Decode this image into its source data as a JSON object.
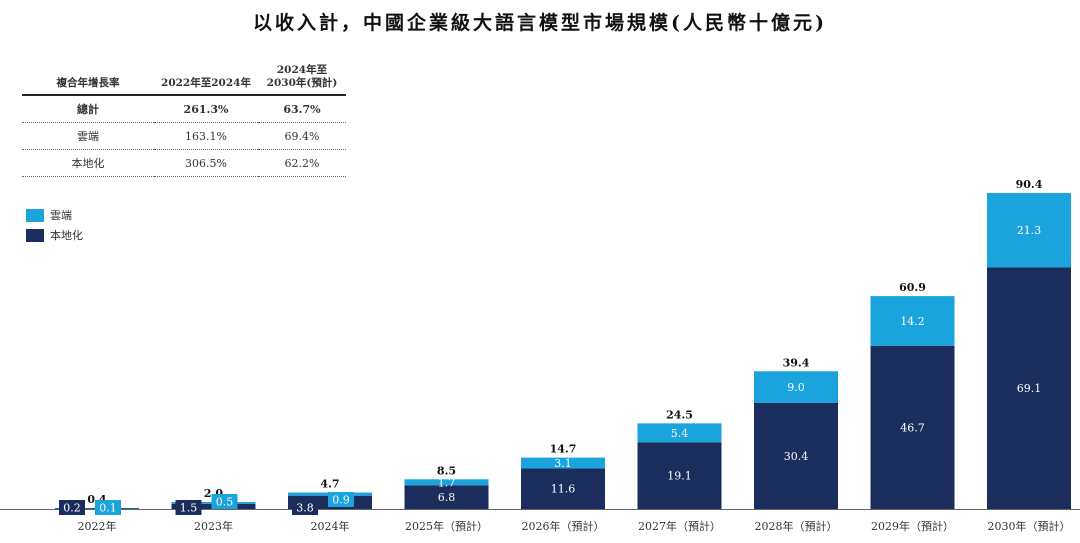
{
  "title": "以收入計，中國企業級大語言模型市場規模(人民幣十億元)",
  "cagr_table": {
    "headers": [
      "複合年增長率",
      "2022年至2024年",
      "2024年至\n2030年(預計)"
    ],
    "rows": [
      {
        "label": "總計",
        "v1": "261.3%",
        "v2": "63.7%",
        "bold": true
      },
      {
        "label": "雲端",
        "v1": "163.1%",
        "v2": "69.4%",
        "bold": false
      },
      {
        "label": "本地化",
        "v1": "306.5%",
        "v2": "62.2%",
        "bold": false
      }
    ]
  },
  "legend": [
    {
      "name": "雲端",
      "color": "#1aa3dc"
    },
    {
      "name": "本地化",
      "color": "#1b2d5c"
    }
  ],
  "chart_data": {
    "type": "bar",
    "stacked": true,
    "categories": [
      "2022年",
      "2023年",
      "2024年",
      "2025年（預計）",
      "2026年（預計）",
      "2027年（預計）",
      "2028年（預計）",
      "2029年（預計）",
      "2030年（預計）"
    ],
    "series": [
      {
        "name": "本地化",
        "color": "#1b2d5c",
        "values": [
          0.2,
          1.5,
          3.8,
          6.8,
          11.6,
          19.1,
          30.4,
          46.7,
          69.1
        ],
        "labels": [
          "0.2",
          "1.5",
          "3.8",
          "6.8",
          "11.6",
          "19.1",
          "30.4",
          "46.7",
          "69.1"
        ]
      },
      {
        "name": "雲端",
        "color": "#1aa3dc",
        "values": [
          0.1,
          0.5,
          0.9,
          1.7,
          3.1,
          5.4,
          9.0,
          14.2,
          21.3
        ],
        "labels": [
          "0.1",
          "0.5",
          "0.9",
          "1.7",
          "3.1",
          "5.4",
          "9.0",
          "14.2",
          "21.3"
        ]
      }
    ],
    "totals": [
      0.4,
      2.0,
      4.7,
      8.5,
      14.7,
      24.5,
      39.4,
      60.9,
      90.4
    ],
    "total_labels": [
      "0.4",
      "2.0",
      "4.7",
      "8.5",
      "14.7",
      "24.5",
      "39.4",
      "60.9",
      "90.4"
    ],
    "ylim": [
      0,
      90.4
    ]
  }
}
